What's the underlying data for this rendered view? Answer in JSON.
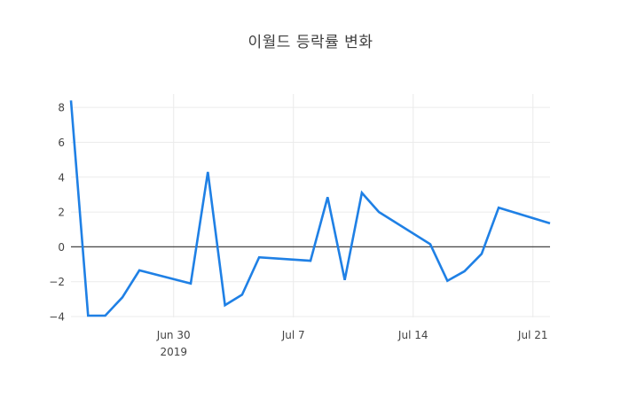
{
  "figure": {
    "title": "이월드 등락률 변화"
  },
  "chart_data": {
    "type": "line",
    "title": "이월드 등락률 변화",
    "x": [
      "2019-06-24",
      "2019-06-25",
      "2019-06-26",
      "2019-06-27",
      "2019-06-28",
      "2019-07-01",
      "2019-07-02",
      "2019-07-03",
      "2019-07-04",
      "2019-07-05",
      "2019-07-08",
      "2019-07-09",
      "2019-07-10",
      "2019-07-11",
      "2019-07-12",
      "2019-07-15",
      "2019-07-16",
      "2019-07-17",
      "2019-07-18",
      "2019-07-19",
      "2019-07-22"
    ],
    "values": [
      8.4,
      -3.95,
      -3.95,
      -2.9,
      -1.35,
      -2.1,
      4.3,
      -3.35,
      -2.75,
      -0.6,
      -0.8,
      2.85,
      -1.9,
      3.1,
      2.0,
      0.15,
      -1.95,
      -1.4,
      -0.4,
      2.25,
      1.35
    ],
    "xlabel": "",
    "ylabel": "",
    "xlim": [
      "2019-06-24",
      "2019-07-22"
    ],
    "ylim": [
      -4.05,
      8.77
    ],
    "yticks": [
      {
        "value": 8,
        "label": "8"
      },
      {
        "value": 6,
        "label": "6"
      },
      {
        "value": 4,
        "label": "4"
      },
      {
        "value": 2,
        "label": "2"
      },
      {
        "value": 0,
        "label": "0"
      },
      {
        "value": -2,
        "label": "−2"
      },
      {
        "value": -4,
        "label": "−4"
      }
    ],
    "xticks": [
      {
        "date": "2019-06-30",
        "label": "Jun 30",
        "sublabel": "2019"
      },
      {
        "date": "2019-07-07",
        "label": "Jul 7",
        "sublabel": ""
      },
      {
        "date": "2019-07-14",
        "label": "Jul 14",
        "sublabel": ""
      },
      {
        "date": "2019-07-21",
        "label": "Jul 21",
        "sublabel": ""
      }
    ],
    "grid": true,
    "zeroline": true,
    "legend": false,
    "line_color": "#1f80e5",
    "line_width": 2.6,
    "grid_color": "#ebebeb",
    "zeroline_color": "#444444",
    "text_color": "#444444",
    "title_color": "#3d3d3d",
    "background": "#ffffff"
  }
}
